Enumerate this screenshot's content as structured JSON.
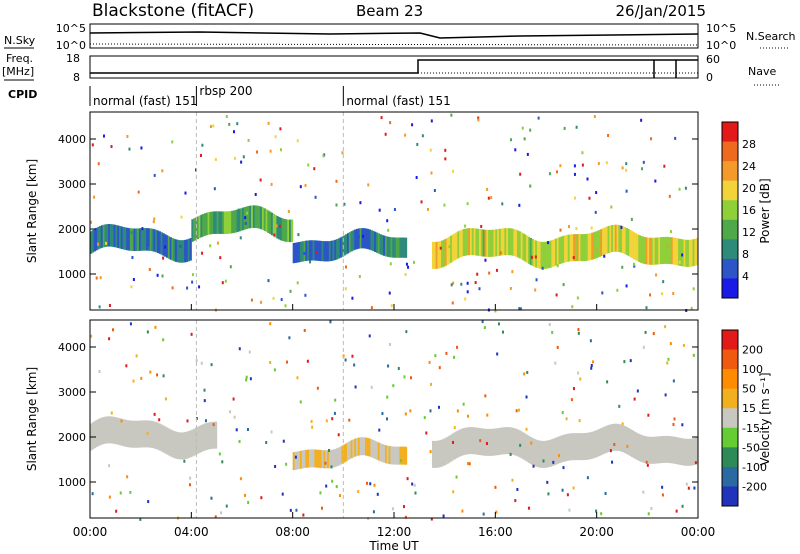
{
  "header": {
    "station": "Blackstone (fitACF)",
    "beam": "Beam 23",
    "date": "26/Jan/2015"
  },
  "status_panels": {
    "nsky_label": "N.Sky",
    "nsky_ticks": [
      "10^5",
      "10^0"
    ],
    "nsearch_label": "N.Search",
    "freq_label": "Freq.",
    "freq_unit": "[MHz]",
    "freq_ticks": [
      "18",
      "8"
    ],
    "nave_label": "Nave",
    "nave_ticks": [
      "60",
      "0"
    ],
    "cpid_label": "CPID",
    "cpid_segments": [
      {
        "label": "normal (fast) 151",
        "start_h": 0,
        "end_h": 4.2
      },
      {
        "label": "rbsp 200",
        "start_h": 4.2,
        "end_h": 10.0
      },
      {
        "label": "normal (fast) 151",
        "start_h": 10.0,
        "end_h": 24
      }
    ]
  },
  "axis": {
    "xlabel": "Time UT",
    "ylabel": "Slant Range [km]",
    "xticks": [
      "00:00",
      "04:00",
      "08:00",
      "12:00",
      "16:00",
      "20:00",
      "00:00"
    ],
    "yticks": [
      "1000",
      "2000",
      "3000",
      "4000"
    ]
  },
  "colorbars": {
    "power": {
      "label": "Power [dB]",
      "ticks": [
        "28",
        "24",
        "20",
        "16",
        "12",
        "8",
        "4"
      ]
    },
    "velocity": {
      "label": "Velocity [m s⁻¹]",
      "ticks": [
        "200",
        "100",
        "50",
        "15",
        "-15",
        "-50",
        "-100",
        "-200"
      ]
    }
  },
  "chart_data": [
    {
      "type": "heatmap",
      "name": "Power",
      "xlabel": "Time UT",
      "ylabel": "Slant Range [km]",
      "xlim": [
        0,
        24
      ],
      "ylim": [
        200,
        4600
      ],
      "colorbar_label": "Power [dB]",
      "colorbar_range": [
        0,
        32
      ],
      "colors": [
        "#1a1ae6",
        "#2c55c8",
        "#2e8b7a",
        "#4fa84a",
        "#8fcf3a",
        "#f2d43a",
        "#f39a2a",
        "#ee6a1e",
        "#e31a1a"
      ],
      "bands": [
        {
          "t_start": 0,
          "t_end": 4,
          "range_center_km": 1700,
          "thickness_km": 500,
          "power_db": 8
        },
        {
          "t_start": 4,
          "t_end": 8,
          "range_center_km": 2100,
          "thickness_km": 500,
          "power_db": 12
        },
        {
          "t_start": 8,
          "t_end": 12.5,
          "range_center_km": 1600,
          "thickness_km": 450,
          "power_db": 8
        },
        {
          "t_start": 13.5,
          "t_end": 24,
          "range_center_km": 1600,
          "thickness_km": 600,
          "power_db": 18
        }
      ]
    },
    {
      "type": "heatmap",
      "name": "Velocity",
      "xlabel": "Time UT",
      "ylabel": "Slant Range [km]",
      "xlim": [
        0,
        24
      ],
      "ylim": [
        200,
        4600
      ],
      "colorbar_label": "Velocity [m s⁻¹]",
      "colorbar_range": [
        -250,
        250
      ],
      "colors": [
        "#2233bb",
        "#2a6aa0",
        "#2e8b57",
        "#66cc33",
        "#c8c8c0",
        "#f2b020",
        "#ff8c00",
        "#f05a10",
        "#e31a1a"
      ],
      "bands": [
        {
          "t_start": 0,
          "t_end": 5,
          "range_center_km": 2000,
          "thickness_km": 600,
          "velocity": 0
        },
        {
          "t_start": 8,
          "t_end": 12.5,
          "range_center_km": 1600,
          "thickness_km": 400,
          "velocity": 30
        },
        {
          "t_start": 13.5,
          "t_end": 24,
          "range_center_km": 1800,
          "thickness_km": 600,
          "velocity": 0
        }
      ]
    }
  ]
}
